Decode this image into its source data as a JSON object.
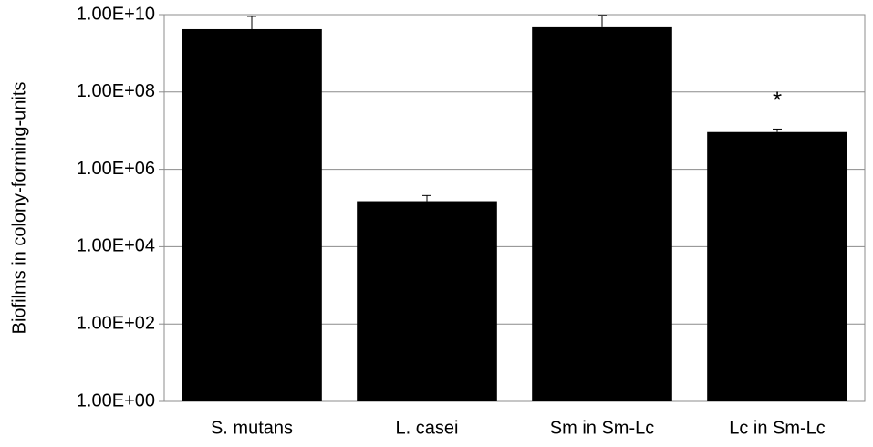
{
  "chart_data": {
    "type": "bar",
    "y_label": "Biofilms in colony-forming-units",
    "categories": [
      "S. mutans",
      "L. casei",
      "Sm in Sm-Lc",
      "Lc in Sm-Lc"
    ],
    "values": [
      4200000000,
      150000,
      4700000000,
      9200000
    ],
    "errors": [
      4800000000,
      60000,
      4800000000,
      1800000
    ],
    "color": "#000000",
    "annotation": "*",
    "log_scale": true,
    "grid": true,
    "ylim": [
      1,
      10000000000
    ],
    "yticks": [
      {
        "value": 1,
        "label": "1.00E+00"
      },
      {
        "value": 100,
        "label": "1.00E+02"
      },
      {
        "value": 10000,
        "label": "1.00E+04"
      },
      {
        "value": 1000000,
        "label": "1.00E+06"
      },
      {
        "value": 100000000,
        "label": "1.00E+08"
      },
      {
        "value": 10000000000,
        "label": "1.00E+10"
      }
    ]
  }
}
